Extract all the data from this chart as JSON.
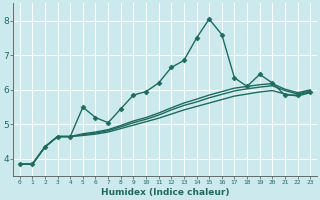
{
  "xlabel": "Humidex (Indice chaleur)",
  "bg_color": "#cceaee",
  "grid_color": "#ffffff",
  "line_color": "#1e6b5e",
  "xlim": [
    -0.5,
    23.5
  ],
  "ylim": [
    3.5,
    8.5
  ],
  "yticks": [
    4,
    5,
    6,
    7,
    8
  ],
  "xticks": [
    0,
    1,
    2,
    3,
    4,
    5,
    6,
    7,
    8,
    9,
    10,
    11,
    12,
    13,
    14,
    15,
    16,
    17,
    18,
    19,
    20,
    21,
    22,
    23
  ],
  "lines": [
    {
      "x": [
        0,
        1,
        2,
        3,
        4,
        5,
        6,
        7,
        8,
        9,
        10,
        11,
        12,
        13,
        14,
        15,
        16,
        17,
        18,
        19,
        20,
        21,
        22,
        23
      ],
      "y": [
        3.85,
        3.85,
        4.35,
        4.65,
        4.65,
        5.5,
        5.2,
        5.05,
        5.45,
        5.85,
        5.95,
        6.2,
        6.65,
        6.85,
        7.5,
        8.05,
        7.6,
        6.35,
        6.1,
        6.45,
        6.2,
        5.85,
        5.85,
        5.95
      ],
      "marker": "D",
      "markersize": 2.5,
      "lw": 1.0
    },
    {
      "x": [
        0,
        1,
        2,
        3,
        4,
        5,
        6,
        7,
        8,
        9,
        10,
        11,
        12,
        13,
        14,
        15,
        16,
        17,
        18,
        19,
        20,
        21,
        22,
        23
      ],
      "y": [
        3.85,
        3.85,
        4.35,
        4.65,
        4.65,
        4.68,
        4.72,
        4.78,
        4.88,
        4.98,
        5.08,
        5.18,
        5.3,
        5.42,
        5.52,
        5.62,
        5.72,
        5.82,
        5.88,
        5.94,
        5.98,
        5.88,
        5.82,
        5.92
      ],
      "marker": null,
      "markersize": 0,
      "lw": 1.0
    },
    {
      "x": [
        0,
        1,
        2,
        3,
        4,
        5,
        6,
        7,
        8,
        9,
        10,
        11,
        12,
        13,
        14,
        15,
        16,
        17,
        18,
        19,
        20,
        21,
        22,
        23
      ],
      "y": [
        3.85,
        3.85,
        4.35,
        4.65,
        4.65,
        4.7,
        4.75,
        4.82,
        4.93,
        5.05,
        5.15,
        5.27,
        5.42,
        5.55,
        5.65,
        5.77,
        5.87,
        5.97,
        6.03,
        6.08,
        6.12,
        5.98,
        5.88,
        5.97
      ],
      "marker": null,
      "markersize": 0,
      "lw": 1.0
    },
    {
      "x": [
        0,
        1,
        2,
        3,
        4,
        5,
        6,
        7,
        8,
        9,
        10,
        11,
        12,
        13,
        14,
        15,
        16,
        17,
        18,
        19,
        20,
        21,
        22,
        23
      ],
      "y": [
        3.85,
        3.85,
        4.35,
        4.65,
        4.65,
        4.73,
        4.78,
        4.85,
        4.97,
        5.1,
        5.2,
        5.33,
        5.48,
        5.62,
        5.73,
        5.85,
        5.95,
        6.05,
        6.1,
        6.15,
        6.18,
        6.02,
        5.92,
        6.0
      ],
      "marker": null,
      "markersize": 0,
      "lw": 1.0
    }
  ]
}
